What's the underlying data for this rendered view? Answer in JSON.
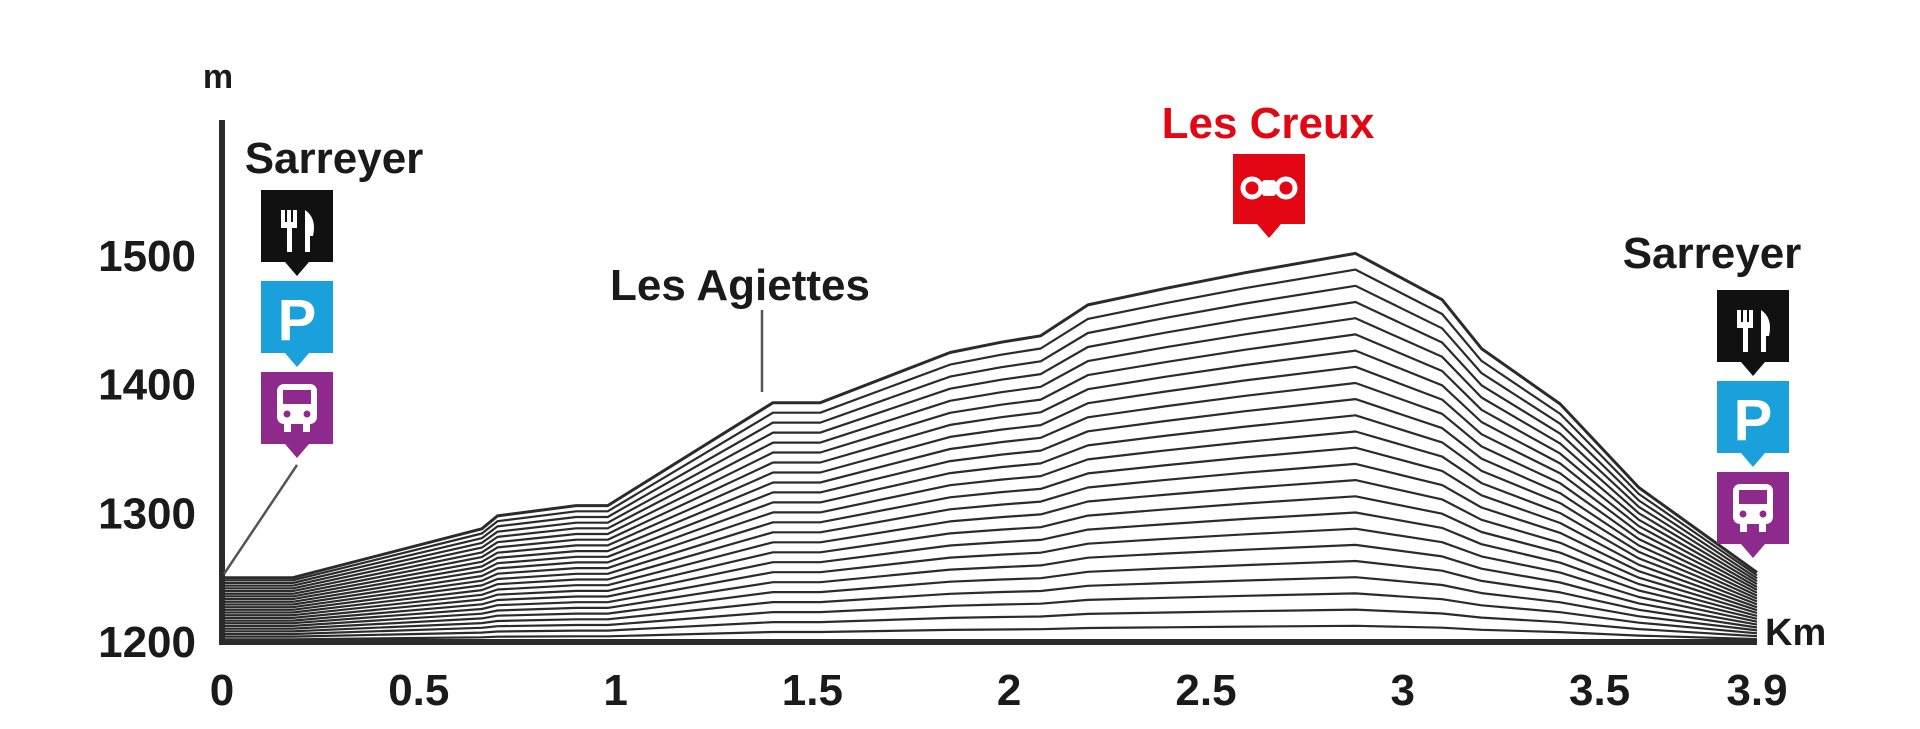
{
  "chart_data": {
    "type": "area",
    "title": "",
    "xlabel": "Km",
    "ylabel": "m",
    "xlim": [
      0,
      3.9
    ],
    "ylim": [
      1200,
      1590
    ],
    "x_ticks": [
      0,
      0.5,
      1,
      1.5,
      2,
      2.5,
      3,
      3.5,
      3.9
    ],
    "x_tick_labels": [
      "0",
      "0.5",
      "1",
      "1.5",
      "2",
      "2.5",
      "3",
      "3.5",
      "3.9"
    ],
    "y_ticks": [
      1200,
      1300,
      1400,
      1500
    ],
    "y_tick_labels": [
      "1200",
      "1300",
      "1400",
      "1500"
    ],
    "grid": false,
    "series": [
      {
        "x": [
          0,
          0.18,
          0.66,
          0.7,
          0.9,
          0.98,
          1.4,
          1.46,
          1.52,
          1.85,
          1.98,
          2.08,
          2.2,
          2.4,
          2.6,
          2.88,
          3.1,
          3.2,
          3.4,
          3.6,
          3.9
        ],
        "y": [
          1250,
          1250,
          1288,
          1298,
          1306,
          1306,
          1386,
          1386,
          1386,
          1425,
          1433,
          1438,
          1462,
          1475,
          1487,
          1502,
          1466,
          1428,
          1385,
          1320,
          1254
        ]
      }
    ],
    "annotations": [
      {
        "label": "Sarreyer",
        "x": 0,
        "icons": [
          "restaurant-icon",
          "parking-icon",
          "bus-icon"
        ],
        "color": "#1a1a1a"
      },
      {
        "label": "Les Agiettes",
        "x": 1.4,
        "icons": [],
        "color": "#1a1a1a"
      },
      {
        "label": "Les Creux",
        "x": 2.88,
        "icons": [
          "viewpoint-icon"
        ],
        "color": "#e30613"
      },
      {
        "label": "Sarreyer",
        "x": 3.9,
        "icons": [
          "restaurant-icon",
          "parking-icon",
          "bus-icon"
        ],
        "color": "#1a1a1a"
      }
    ],
    "colors": {
      "line": "#2b2b2b",
      "axis": "#2b2b2b",
      "text": "#1a1a1a",
      "restaurant": "#111111",
      "parking": "#1aa0da",
      "bus": "#8e2a8b",
      "viewpoint": "#e30613",
      "highlight": "#e30613"
    }
  }
}
